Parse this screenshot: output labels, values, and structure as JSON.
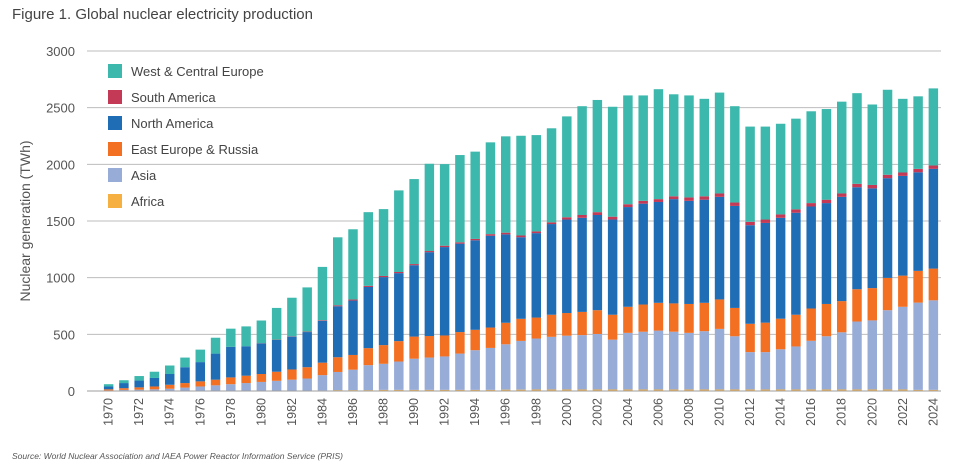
{
  "title": "Figure 1. Global nuclear electricity production",
  "source": "Source: World Nuclear Association and IAEA Power Reactor Information Service (PRIS)",
  "chart_data": {
    "type": "bar",
    "stacked": true,
    "ylabel": "Nuclear generation (TWh)",
    "xlabel": "",
    "ylim": [
      0,
      3000
    ],
    "yticks": [
      0,
      500,
      1000,
      1500,
      2000,
      2500,
      3000
    ],
    "grid": "horizontal",
    "legend_position": "top-left",
    "categories": [
      "1970",
      "1971",
      "1972",
      "1973",
      "1974",
      "1975",
      "1976",
      "1977",
      "1978",
      "1979",
      "1980",
      "1981",
      "1982",
      "1983",
      "1984",
      "1985",
      "1986",
      "1987",
      "1988",
      "1989",
      "1990",
      "1991",
      "1992",
      "1993",
      "1994",
      "1995",
      "1996",
      "1997",
      "1998",
      "1999",
      "2000",
      "2001",
      "2002",
      "2003",
      "2004",
      "2005",
      "2006",
      "2007",
      "2008",
      "2009",
      "2010",
      "2011",
      "2012",
      "2013",
      "2014",
      "2015",
      "2016",
      "2017",
      "2018",
      "2019",
      "2020",
      "2021",
      "2022",
      "2023",
      "2024"
    ],
    "xtick_labels": [
      "1970",
      "1972",
      "1974",
      "1976",
      "1978",
      "1980",
      "1982",
      "1984",
      "1986",
      "1988",
      "1990",
      "1992",
      "1994",
      "1996",
      "1998",
      "2000",
      "2002",
      "2004",
      "2006",
      "2008",
      "2010",
      "2012",
      "2014",
      "2016",
      "2018",
      "2020",
      "2022",
      "2024"
    ],
    "series": [
      {
        "name": "Africa",
        "color": "#f5b041",
        "values": [
          0,
          0,
          0,
          0,
          0,
          0,
          0,
          0,
          0,
          0,
          0,
          0,
          0,
          0,
          5,
          8,
          8,
          8,
          10,
          10,
          10,
          10,
          10,
          10,
          10,
          10,
          12,
          12,
          13,
          13,
          13,
          13,
          13,
          13,
          13,
          13,
          13,
          13,
          13,
          13,
          13,
          13,
          13,
          13,
          13,
          13,
          13,
          13,
          13,
          13,
          13,
          13,
          13,
          10,
          10
        ]
      },
      {
        "name": "Asia",
        "color": "#98acd8",
        "values": [
          5,
          10,
          12,
          15,
          20,
          30,
          40,
          50,
          60,
          70,
          80,
          90,
          100,
          110,
          135,
          160,
          180,
          220,
          230,
          250,
          275,
          285,
          295,
          320,
          350,
          370,
          400,
          430,
          450,
          465,
          475,
          480,
          490,
          440,
          500,
          510,
          520,
          510,
          500,
          515,
          535,
          470,
          330,
          330,
          355,
          380,
          430,
          470,
          505,
          600,
          610,
          700,
          730,
          770,
          790
        ]
      },
      {
        "name": "East Europe & Russia",
        "color": "#f37022",
        "values": [
          10,
          15,
          20,
          25,
          35,
          40,
          45,
          50,
          60,
          65,
          70,
          80,
          90,
          100,
          110,
          130,
          130,
          150,
          165,
          180,
          195,
          190,
          185,
          190,
          180,
          180,
          190,
          195,
          185,
          195,
          200,
          205,
          210,
          220,
          230,
          240,
          245,
          250,
          255,
          250,
          260,
          250,
          250,
          260,
          270,
          280,
          285,
          285,
          275,
          285,
          285,
          285,
          275,
          280,
          280
        ]
      },
      {
        "name": "North America",
        "color": "#1f6db5",
        "values": [
          25,
          45,
          60,
          75,
          95,
          140,
          170,
          230,
          270,
          260,
          270,
          280,
          290,
          310,
          370,
          450,
          480,
          540,
          600,
          600,
          630,
          740,
          780,
          780,
          790,
          810,
          780,
          720,
          745,
          800,
          825,
          830,
          840,
          840,
          880,
          890,
          890,
          920,
          910,
          910,
          905,
          900,
          870,
          880,
          890,
          900,
          900,
          890,
          920,
          900,
          880,
          880,
          880,
          870,
          880
        ]
      },
      {
        "name": "South America",
        "color": "#c43956",
        "values": [
          0,
          0,
          0,
          0,
          0,
          0,
          0,
          0,
          0,
          0,
          2,
          3,
          3,
          4,
          5,
          8,
          9,
          10,
          10,
          10,
          10,
          10,
          12,
          12,
          12,
          14,
          15,
          15,
          15,
          15,
          20,
          25,
          25,
          25,
          25,
          25,
          25,
          25,
          30,
          30,
          30,
          30,
          30,
          30,
          30,
          30,
          30,
          30,
          30,
          30,
          30,
          30,
          30,
          30,
          30
        ]
      },
      {
        "name": "West & Central Europe",
        "color": "#3db8ad",
        "values": [
          20,
          25,
          40,
          55,
          75,
          85,
          110,
          140,
          160,
          175,
          200,
          280,
          340,
          390,
          470,
          600,
          620,
          650,
          590,
          720,
          750,
          770,
          720,
          770,
          770,
          810,
          850,
          880,
          850,
          830,
          890,
          960,
          990,
          970,
          960,
          930,
          970,
          900,
          900,
          860,
          890,
          850,
          840,
          820,
          800,
          800,
          810,
          800,
          810,
          800,
          710,
          750,
          650,
          640,
          680
        ]
      }
    ]
  }
}
